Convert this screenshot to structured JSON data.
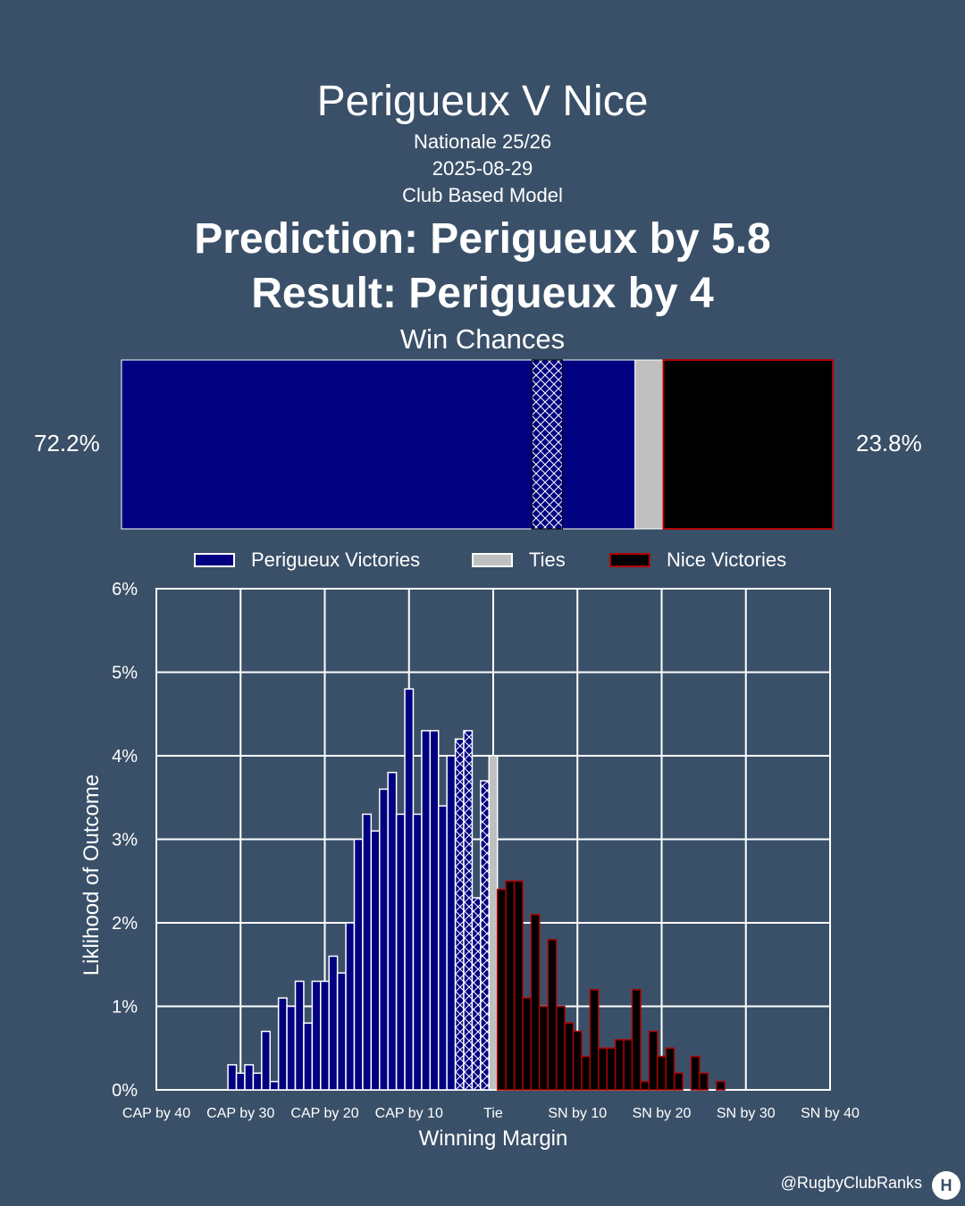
{
  "header": {
    "title": "Perigueux V Nice",
    "league": "Nationale 25/26",
    "date": "2025-08-29",
    "model": "Club Based Model",
    "prediction": "Prediction: Perigueux by 5.8",
    "result": "Result: Perigueux by 4"
  },
  "win_chances": {
    "title": "Win Chances",
    "home_pct_label": "72.2%",
    "away_pct_label": "23.8%",
    "home_pct": 72.2,
    "tie_pct": 4.0,
    "away_pct": 23.8,
    "hatch_start_pct": 57.7,
    "hatch_end_pct": 62.0,
    "colors": {
      "home": "#000080",
      "tie": "#c0c0c0",
      "away": "#000000",
      "away_border": "#b00000"
    }
  },
  "legend": {
    "home": "Perigueux Victories",
    "tie": "Ties",
    "away": "Nice Victories"
  },
  "chart_data": {
    "type": "bar",
    "xlabel": "Winning Margin",
    "ylabel": "Liklihood of Outcome",
    "xlim": [
      -40,
      40
    ],
    "ylim": [
      0,
      6
    ],
    "x_ticks": [
      -40,
      -30,
      -20,
      -10,
      0,
      10,
      20,
      30,
      40
    ],
    "x_tick_labels": [
      "CAP by 40",
      "CAP by 30",
      "CAP by 20",
      "CAP by 10",
      "Tie",
      "SN by 10",
      "SN by 20",
      "SN by 30",
      "SN by 40"
    ],
    "y_ticks": [
      0,
      1,
      2,
      3,
      4,
      5,
      6
    ],
    "y_tick_labels": [
      "0%",
      "1%",
      "2%",
      "3%",
      "4%",
      "5%",
      "6%"
    ],
    "grid": true,
    "hatched_range": [
      -4,
      -1
    ],
    "series": [
      {
        "name": "Perigueux Victories",
        "x": [
          -31,
          -30,
          -29,
          -28,
          -27,
          -26,
          -25,
          -24,
          -23,
          -22,
          -21,
          -20,
          -19,
          -18,
          -17,
          -16,
          -15,
          -14,
          -13,
          -12,
          -11,
          -10,
          -9,
          -8,
          -7,
          -6,
          -5,
          -4,
          -3,
          -2,
          -1
        ],
        "values": [
          0.3,
          0.2,
          0.3,
          0.2,
          0.7,
          0.1,
          1.1,
          1.0,
          1.3,
          0.8,
          1.3,
          1.3,
          1.6,
          1.4,
          2.0,
          3.0,
          3.3,
          3.1,
          3.6,
          3.8,
          3.3,
          4.8,
          3.3,
          4.3,
          4.3,
          3.4,
          4.0,
          4.2,
          4.3,
          2.3,
          3.7
        ]
      },
      {
        "name": "Ties",
        "x": [
          0
        ],
        "values": [
          4.0
        ]
      },
      {
        "name": "Nice Victories",
        "x": [
          1,
          2,
          3,
          4,
          5,
          6,
          7,
          8,
          9,
          10,
          11,
          12,
          13,
          14,
          15,
          16,
          17,
          18,
          19,
          20,
          21,
          22,
          23,
          24,
          25,
          26,
          27
        ],
        "values": [
          2.4,
          2.5,
          2.5,
          1.1,
          2.1,
          1.0,
          1.8,
          1.0,
          0.8,
          0.7,
          0.4,
          1.2,
          0.5,
          0.5,
          0.6,
          0.6,
          1.2,
          0.1,
          0.7,
          0.4,
          0.5,
          0.2,
          0.0,
          0.4,
          0.2,
          0.0,
          0.1
        ]
      }
    ]
  },
  "footer": {
    "credit": "@RugbyClubRanks",
    "logo_icon": "logo-icon"
  }
}
